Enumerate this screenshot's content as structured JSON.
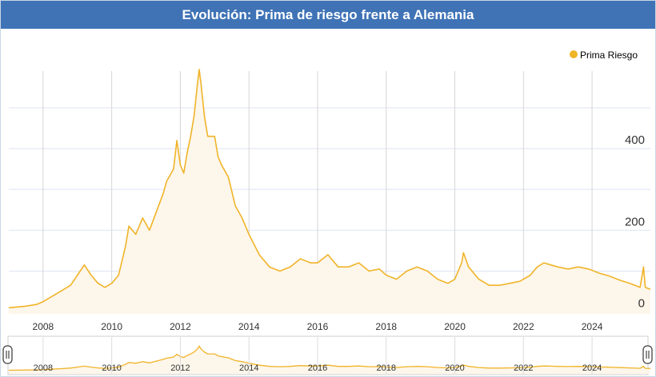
{
  "title": "Evolución: Prima de riesgo frente a Alemania",
  "colors": {
    "header_bg": "#3f73b6",
    "series": "#f0b429",
    "area_fill": "#fdf6ea",
    "grid_vertical": "#d6d6d6",
    "grid_horizontal": "#dde3f3"
  },
  "chart_data": {
    "type": "line",
    "title": "Evolución: Prima de riesgo frente a Alemania",
    "xlabel": "",
    "ylabel": "",
    "xlim": [
      2007.0,
      2025.7
    ],
    "ylim": [
      -5,
      590
    ],
    "grid": true,
    "legend_position": "top-right",
    "x_ticks": [
      "2008",
      "2010",
      "2012",
      "2014",
      "2016",
      "2018",
      "2020",
      "2022",
      "2024"
    ],
    "y_ticks": [
      "0",
      "200",
      "400"
    ],
    "series": [
      {
        "name": "Prima Riesgo",
        "points": [
          [
            2007.0,
            10
          ],
          [
            2007.5,
            14
          ],
          [
            2007.8,
            18
          ],
          [
            2008.0,
            25
          ],
          [
            2008.2,
            35
          ],
          [
            2008.5,
            50
          ],
          [
            2008.8,
            65
          ],
          [
            2009.0,
            90
          ],
          [
            2009.2,
            115
          ],
          [
            2009.4,
            90
          ],
          [
            2009.6,
            70
          ],
          [
            2009.8,
            60
          ],
          [
            2010.0,
            70
          ],
          [
            2010.2,
            90
          ],
          [
            2010.4,
            160
          ],
          [
            2010.5,
            210
          ],
          [
            2010.7,
            190
          ],
          [
            2010.9,
            230
          ],
          [
            2011.1,
            200
          ],
          [
            2011.3,
            245
          ],
          [
            2011.5,
            290
          ],
          [
            2011.6,
            320
          ],
          [
            2011.8,
            350
          ],
          [
            2011.9,
            420
          ],
          [
            2012.0,
            360
          ],
          [
            2012.1,
            340
          ],
          [
            2012.2,
            390
          ],
          [
            2012.3,
            430
          ],
          [
            2012.4,
            480
          ],
          [
            2012.5,
            560
          ],
          [
            2012.55,
            630
          ],
          [
            2012.6,
            560
          ],
          [
            2012.7,
            480
          ],
          [
            2012.8,
            430
          ],
          [
            2013.0,
            430
          ],
          [
            2013.1,
            380
          ],
          [
            2013.2,
            360
          ],
          [
            2013.4,
            330
          ],
          [
            2013.6,
            260
          ],
          [
            2013.8,
            230
          ],
          [
            2014.0,
            190
          ],
          [
            2014.3,
            140
          ],
          [
            2014.6,
            110
          ],
          [
            2014.9,
            100
          ],
          [
            2015.2,
            110
          ],
          [
            2015.5,
            130
          ],
          [
            2015.8,
            120
          ],
          [
            2016.0,
            120
          ],
          [
            2016.3,
            140
          ],
          [
            2016.6,
            110
          ],
          [
            2016.9,
            110
          ],
          [
            2017.2,
            120
          ],
          [
            2017.5,
            100
          ],
          [
            2017.8,
            105
          ],
          [
            2018.0,
            90
          ],
          [
            2018.3,
            80
          ],
          [
            2018.6,
            100
          ],
          [
            2018.9,
            110
          ],
          [
            2019.2,
            100
          ],
          [
            2019.5,
            80
          ],
          [
            2019.8,
            70
          ],
          [
            2020.0,
            80
          ],
          [
            2020.2,
            120
          ],
          [
            2020.25,
            145
          ],
          [
            2020.4,
            110
          ],
          [
            2020.7,
            80
          ],
          [
            2021.0,
            65
          ],
          [
            2021.3,
            65
          ],
          [
            2021.6,
            70
          ],
          [
            2021.9,
            75
          ],
          [
            2022.2,
            90
          ],
          [
            2022.4,
            110
          ],
          [
            2022.6,
            120
          ],
          [
            2022.8,
            115
          ],
          [
            2023.0,
            110
          ],
          [
            2023.3,
            105
          ],
          [
            2023.6,
            110
          ],
          [
            2023.9,
            105
          ],
          [
            2024.2,
            95
          ],
          [
            2024.5,
            88
          ],
          [
            2024.8,
            78
          ],
          [
            2025.1,
            70
          ],
          [
            2025.4,
            60
          ],
          [
            2025.5,
            110
          ],
          [
            2025.55,
            60
          ],
          [
            2025.7,
            55
          ]
        ]
      }
    ]
  }
}
